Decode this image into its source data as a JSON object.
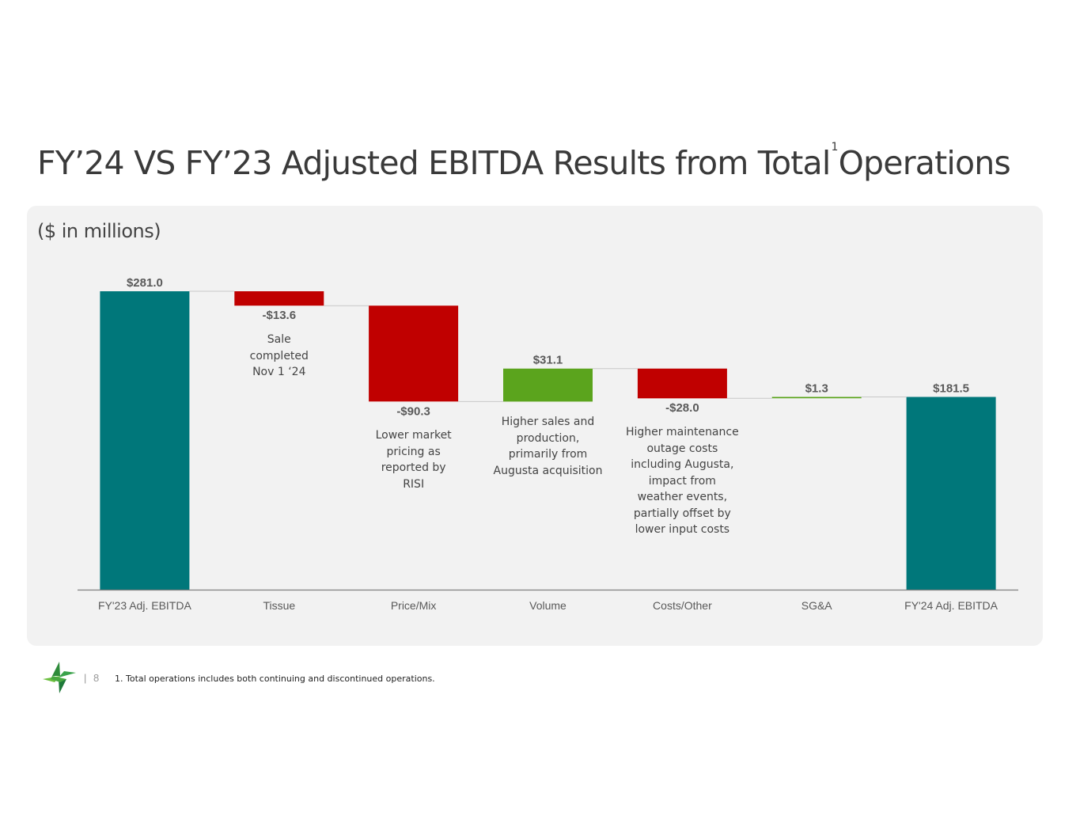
{
  "page": {
    "title_main": "FY’24 VS FY’23 Adjusted EBITDA Results from Total",
    "title_sup": "1",
    "title_end": "Operations",
    "units": "($ in millions)",
    "page_number": "8",
    "separator": "|",
    "footnote": "1. Total operations includes both continuing and discontinued operations."
  },
  "colors": {
    "total": "#00777a",
    "decrease": "#c00000",
    "increase": "#5ba41d",
    "connector": "#c8c8c8",
    "axis": "#7f7f7f"
  },
  "chart_data": {
    "type": "waterfall",
    "title": "FY’24 VS FY’23 Adjusted EBITDA Results from Total Operations",
    "ylabel": "$ in millions",
    "ylim": [
      0,
      281.0
    ],
    "categories": [
      "FY'23 Adj. EBITDA",
      "Tissue",
      "Price/Mix",
      "Volume",
      "Costs/Other",
      "SG&A",
      "FY'24 Adj. EBITDA"
    ],
    "bars": [
      {
        "category": "FY'23 Adj. EBITDA",
        "kind": "total",
        "value": 281.0,
        "label": "$281.0"
      },
      {
        "category": "Tissue",
        "kind": "delta",
        "value": -13.6,
        "label": "-$13.6"
      },
      {
        "category": "Price/Mix",
        "kind": "delta",
        "value": -90.3,
        "label": "-$90.3"
      },
      {
        "category": "Volume",
        "kind": "delta",
        "value": 31.1,
        "label": "$31.1"
      },
      {
        "category": "Costs/Other",
        "kind": "delta",
        "value": -28.0,
        "label": "-$28.0"
      },
      {
        "category": "SG&A",
        "kind": "delta",
        "value": 1.3,
        "label": "$1.3"
      },
      {
        "category": "FY'24 Adj. EBITDA",
        "kind": "total",
        "value": 181.5,
        "label": "$181.5"
      }
    ],
    "annotations": [
      {
        "category": "Tissue",
        "lines": [
          "Sale",
          "completed",
          "Nov 1 ‘24"
        ]
      },
      {
        "category": "Price/Mix",
        "lines": [
          "Lower market",
          "pricing as",
          "reported by",
          "RISI"
        ]
      },
      {
        "category": "Volume",
        "lines": [
          "Higher sales and",
          "production,",
          "primarily from",
          "Augusta acquisition"
        ]
      },
      {
        "category": "Costs/Other",
        "lines": [
          "Higher maintenance",
          "outage costs",
          "including Augusta,",
          "impact from",
          "weather events,",
          "partially offset by",
          "lower input costs"
        ]
      }
    ]
  }
}
